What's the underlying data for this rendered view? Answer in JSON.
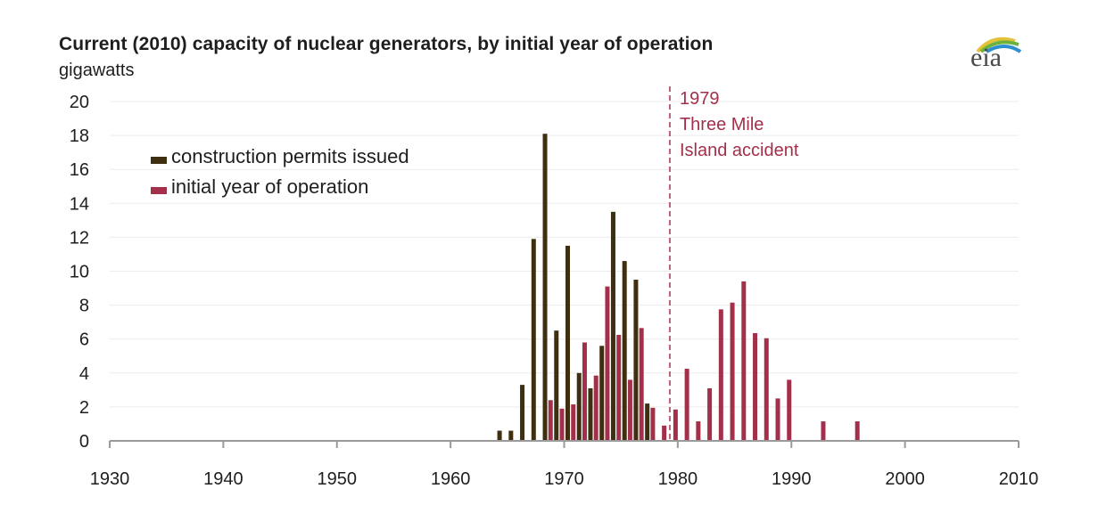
{
  "chart_data": {
    "type": "bar",
    "title": "Current (2010) capacity of nuclear generators, by initial year of operation",
    "ylabel": "gigawatts",
    "xlabel": "",
    "ylim": [
      0,
      20
    ],
    "xlim": [
      1930,
      2010
    ],
    "yticks": [
      "0",
      "2",
      "4",
      "6",
      "8",
      "10",
      "12",
      "14",
      "16",
      "18",
      "20"
    ],
    "xticks": [
      "1930",
      "1940",
      "1950",
      "1960",
      "1970",
      "1980",
      "1990",
      "2000",
      "2010"
    ],
    "grid": true,
    "legend_position": "top-left",
    "series": [
      {
        "name": "construction permits issued",
        "color": "#3d2f0f",
        "points": [
          {
            "year": 1964,
            "value": 0.6
          },
          {
            "year": 1965,
            "value": 0.6
          },
          {
            "year": 1966,
            "value": 3.3
          },
          {
            "year": 1967,
            "value": 11.9
          },
          {
            "year": 1968,
            "value": 18.1
          },
          {
            "year": 1969,
            "value": 6.5
          },
          {
            "year": 1970,
            "value": 11.5
          },
          {
            "year": 1971,
            "value": 4.0
          },
          {
            "year": 1972,
            "value": 3.1
          },
          {
            "year": 1973,
            "value": 5.6
          },
          {
            "year": 1974,
            "value": 13.5
          },
          {
            "year": 1975,
            "value": 10.6
          },
          {
            "year": 1976,
            "value": 9.5
          },
          {
            "year": 1977,
            "value": 2.2
          }
        ]
      },
      {
        "name": "initial year of operation",
        "color": "#a3304a",
        "points": [
          {
            "year": 1969,
            "value": 2.4
          },
          {
            "year": 1970,
            "value": 1.9
          },
          {
            "year": 1971,
            "value": 2.15
          },
          {
            "year": 1972,
            "value": 5.8
          },
          {
            "year": 1973,
            "value": 3.85
          },
          {
            "year": 1974,
            "value": 9.1
          },
          {
            "year": 1975,
            "value": 6.25
          },
          {
            "year": 1976,
            "value": 3.6
          },
          {
            "year": 1977,
            "value": 6.65
          },
          {
            "year": 1978,
            "value": 1.95
          },
          {
            "year": 1979,
            "value": 0.9
          },
          {
            "year": 1980,
            "value": 1.85
          },
          {
            "year": 1981,
            "value": 4.25
          },
          {
            "year": 1982,
            "value": 1.15
          },
          {
            "year": 1983,
            "value": 3.1
          },
          {
            "year": 1984,
            "value": 7.75
          },
          {
            "year": 1985,
            "value": 8.15
          },
          {
            "year": 1986,
            "value": 9.4
          },
          {
            "year": 1987,
            "value": 6.35
          },
          {
            "year": 1988,
            "value": 6.05
          },
          {
            "year": 1989,
            "value": 2.5
          },
          {
            "year": 1990,
            "value": 3.6
          },
          {
            "year": 1993,
            "value": 1.15
          },
          {
            "year": 1996,
            "value": 1.15
          }
        ]
      }
    ],
    "annotations": [
      {
        "year": 1979.3,
        "lines": [
          "1979",
          "Three Mile",
          "Island accident"
        ],
        "style": "dashed-vertical-line",
        "color": "#a3304a"
      }
    ]
  },
  "header": {
    "title": "Current (2010) capacity of nuclear generators, by initial year of operation",
    "unit": "gigawatts",
    "logo_text": "eia",
    "logo_icon": "eia-logo-icon"
  }
}
